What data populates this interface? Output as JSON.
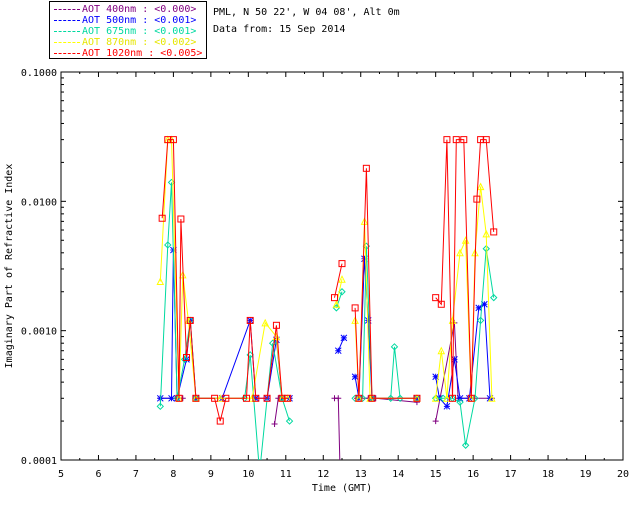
{
  "header": {
    "station": "PML, N 50 22', W 04 08', Alt 0m",
    "date": "Data from: 15 Sep 2014"
  },
  "chart_data": {
    "type": "line",
    "title": "",
    "xlabel": "Time (GMT)",
    "ylabel": "Imaginary Part of Refractive Index",
    "xlim": [
      5,
      20
    ],
    "ylim": [
      0.0001,
      0.1
    ],
    "yscale": "log",
    "xticks": [
      5,
      6,
      7,
      8,
      9,
      10,
      11,
      12,
      13,
      14,
      15,
      16,
      17,
      18,
      19,
      20
    ],
    "yticks": [
      {
        "value": 0.0001,
        "label": "0.0001"
      },
      {
        "value": 0.001,
        "label": "0.0010"
      },
      {
        "value": 0.01,
        "label": "0.0100"
      },
      {
        "value": 0.1,
        "label": "0.1000"
      }
    ],
    "legend_placement": "top-left, outside plot",
    "series": [
      {
        "name": "AOT  400nm : <0.000>",
        "color": "#800080",
        "marker": "plus",
        "segments": [
          [
            [
              7.65,
              0.0003
            ],
            [
              8.25,
              0.0003
            ]
          ],
          [
            [
              10.7,
              0.00019
            ],
            [
              10.8,
              0.0003
            ],
            [
              11.1,
              0.0003
            ]
          ],
          [
            [
              12.3,
              0.0003
            ],
            [
              12.4,
              0.0003
            ],
            [
              12.45,
              8e-05
            ]
          ],
          [
            [
              12.9,
              0.0003
            ],
            [
              13.2,
              0.0003
            ],
            [
              13.4,
              0.0003
            ],
            [
              14.5,
              0.00028
            ]
          ],
          [
            [
              15.0,
              0.0002
            ],
            [
              15.5,
              0.00115
            ],
            [
              15.6,
              0.0003
            ],
            [
              16.5,
              0.0003
            ]
          ]
        ]
      },
      {
        "name": "AOT  500nm : <0.001>",
        "color": "#0000ff",
        "marker": "asterisk",
        "segments": [
          [
            [
              7.65,
              0.0003
            ],
            [
              7.95,
              0.0003
            ],
            [
              8.0,
              0.0042
            ],
            [
              8.1,
              0.0003
            ],
            [
              8.35,
              0.0006
            ],
            [
              8.45,
              0.0012
            ],
            [
              8.6,
              0.0003
            ],
            [
              9.3,
              0.0003
            ],
            [
              10.05,
              0.0012
            ],
            [
              10.2,
              0.0003
            ],
            [
              10.5,
              0.0003
            ],
            [
              10.75,
              0.00085
            ],
            [
              10.9,
              0.0003
            ],
            [
              11.1,
              0.0003
            ]
          ],
          [
            [
              12.4,
              0.0007
            ],
            [
              12.55,
              0.00088
            ]
          ],
          [
            [
              12.85,
              0.00044
            ],
            [
              12.95,
              0.0003
            ],
            [
              13.1,
              0.0036
            ],
            [
              13.2,
              0.0012
            ],
            [
              13.3,
              0.0003
            ],
            [
              14.5,
              0.0003
            ]
          ],
          [
            [
              15.0,
              0.00044
            ],
            [
              15.1,
              0.0003
            ],
            [
              15.3,
              0.00026
            ],
            [
              15.5,
              0.0006
            ],
            [
              15.65,
              0.0003
            ],
            [
              15.9,
              0.0003
            ],
            [
              16.15,
              0.0015
            ],
            [
              16.3,
              0.0016
            ],
            [
              16.45,
              0.0003
            ]
          ]
        ]
      },
      {
        "name": "AOT  675nm : <0.001>",
        "color": "#00d9a0",
        "marker": "diamond",
        "segments": [
          [
            [
              7.65,
              0.00026
            ],
            [
              7.85,
              0.0046
            ],
            [
              7.95,
              0.014
            ],
            [
              8.1,
              0.0003
            ],
            [
              8.3,
              0.0006
            ],
            [
              8.45,
              0.0012
            ],
            [
              8.6,
              0.0003
            ],
            [
              9.9,
              0.0003
            ],
            [
              10.05,
              0.00065
            ],
            [
              10.3,
              8e-05
            ],
            [
              10.65,
              0.0008
            ],
            [
              10.9,
              0.0003
            ],
            [
              11.1,
              0.0002
            ]
          ],
          [
            [
              12.35,
              0.0015
            ],
            [
              12.5,
              0.002
            ]
          ],
          [
            [
              12.85,
              0.0003
            ],
            [
              13.05,
              0.0003
            ],
            [
              13.15,
              0.0045
            ],
            [
              13.3,
              0.0003
            ],
            [
              13.8,
              0.0003
            ],
            [
              13.9,
              0.00075
            ],
            [
              14.05,
              0.0003
            ],
            [
              14.5,
              0.0003
            ]
          ],
          [
            [
              15.0,
              0.0003
            ],
            [
              15.2,
              0.0003
            ],
            [
              15.45,
              0.0003
            ],
            [
              15.65,
              0.00028
            ],
            [
              15.8,
              0.00013
            ],
            [
              16.05,
              0.0003
            ],
            [
              16.2,
              0.0012
            ],
            [
              16.35,
              0.0043
            ],
            [
              16.55,
              0.0018
            ]
          ]
        ]
      },
      {
        "name": "AOT  870nm : <0.002>",
        "color": "#ffff00",
        "marker": "triangle",
        "segments": [
          [
            [
              7.65,
              0.0024
            ],
            [
              7.85,
              0.03
            ],
            [
              7.95,
              0.03
            ],
            [
              8.15,
              0.0003
            ],
            [
              8.25,
              0.0027
            ],
            [
              8.4,
              0.0012
            ],
            [
              8.6,
              0.0003
            ],
            [
              9.25,
              0.0003
            ],
            [
              10.1,
              0.0003
            ],
            [
              10.45,
              0.00115
            ],
            [
              10.75,
              0.0009
            ],
            [
              10.9,
              0.0003
            ],
            [
              11.05,
              0.0003
            ]
          ],
          [
            [
              12.35,
              0.0016
            ],
            [
              12.5,
              0.0025
            ]
          ],
          [
            [
              12.85,
              0.0012
            ],
            [
              12.95,
              0.0003
            ],
            [
              13.1,
              0.007
            ],
            [
              13.25,
              0.0003
            ],
            [
              14.5,
              0.0003
            ]
          ],
          [
            [
              15.0,
              0.0003
            ],
            [
              15.15,
              0.0007
            ],
            [
              15.3,
              0.0003
            ],
            [
              15.45,
              0.0012
            ],
            [
              15.65,
              0.004
            ],
            [
              15.8,
              0.005
            ],
            [
              15.95,
              0.0003
            ],
            [
              16.05,
              0.004
            ],
            [
              16.2,
              0.013
            ],
            [
              16.35,
              0.0056
            ],
            [
              16.5,
              0.0003
            ]
          ]
        ]
      },
      {
        "name": "AOT 1020nm : <0.005>",
        "color": "#ff0000",
        "marker": "square",
        "segments": [
          [
            [
              7.7,
              0.0074
            ],
            [
              7.85,
              0.03
            ],
            [
              8.0,
              0.03
            ],
            [
              8.15,
              0.0003
            ],
            [
              8.2,
              0.0073
            ],
            [
              8.35,
              0.00062
            ],
            [
              8.45,
              0.0012
            ],
            [
              8.6,
              0.0003
            ],
            [
              9.1,
              0.0003
            ],
            [
              9.25,
              0.0002
            ],
            [
              9.4,
              0.0003
            ],
            [
              9.95,
              0.0003
            ],
            [
              10.05,
              0.0012
            ],
            [
              10.2,
              0.0003
            ],
            [
              10.5,
              0.0003
            ],
            [
              10.75,
              0.0011
            ],
            [
              10.9,
              0.0003
            ],
            [
              11.05,
              0.0003
            ]
          ],
          [
            [
              12.3,
              0.0018
            ],
            [
              12.5,
              0.0033
            ]
          ],
          [
            [
              12.85,
              0.0015
            ],
            [
              12.95,
              0.0003
            ],
            [
              13.15,
              0.018
            ],
            [
              13.3,
              0.0003
            ],
            [
              14.5,
              0.0003
            ]
          ],
          [
            [
              15.0,
              0.0018
            ],
            [
              15.15,
              0.0016
            ],
            [
              15.3,
              0.03
            ],
            [
              15.45,
              0.0003
            ],
            [
              15.55,
              0.03
            ],
            [
              15.75,
              0.03
            ],
            [
              15.95,
              0.0003
            ],
            [
              16.1,
              0.0104
            ],
            [
              16.2,
              0.03
            ],
            [
              16.35,
              0.03
            ],
            [
              16.55,
              0.0058
            ]
          ]
        ]
      }
    ]
  }
}
